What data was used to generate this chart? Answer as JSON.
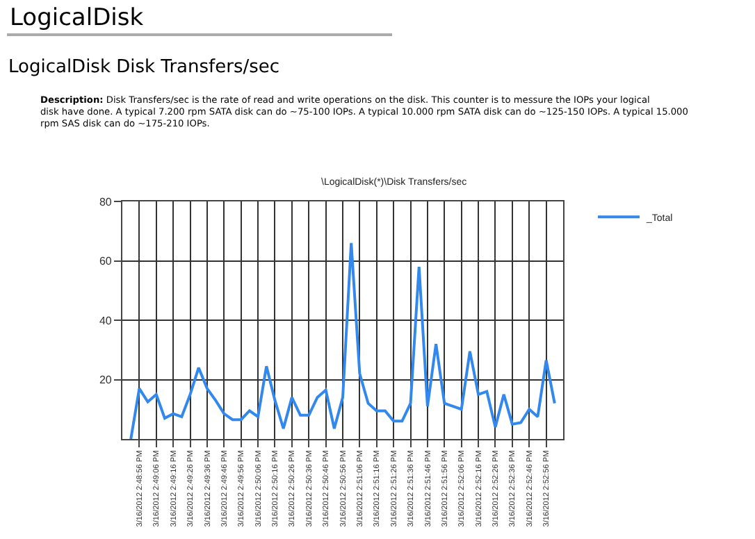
{
  "chart_data": {
    "type": "line",
    "title": "LogicalDisk",
    "subtitle": "LogicalDisk Disk Transfers/sec",
    "annotations": [
      "Description: Disk Transfers/sec is the rate of read and write operations on the disk. This counter is to messure the IOPs your logical disk have done. A typical 7.200 rpm SATA disk can do ~75-100 IOPs. A typical 10.000 rpm SATA disk can do ~125-150 IOPs. A typical 15.000 rpm SAS disk can do ~175-210 IOPs.",
      "\\LogicalDisk(*)\\Disk Transfers/sec"
    ],
    "x": [
      "2012-03-16T14:48:51",
      "2012-03-16T14:48:56",
      "2012-03-16T14:49:01",
      "2012-03-16T14:49:06",
      "2012-03-16T14:49:11",
      "2012-03-16T14:49:16",
      "2012-03-16T14:49:21",
      "2012-03-16T14:49:26",
      "2012-03-16T14:49:31",
      "2012-03-16T14:49:36",
      "2012-03-16T14:49:41",
      "2012-03-16T14:49:46",
      "2012-03-16T14:49:51",
      "2012-03-16T14:49:56",
      "2012-03-16T14:50:01",
      "2012-03-16T14:50:06",
      "2012-03-16T14:50:11",
      "2012-03-16T14:50:16",
      "2012-03-16T14:50:21",
      "2012-03-16T14:50:26",
      "2012-03-16T14:50:31",
      "2012-03-16T14:50:36",
      "2012-03-16T14:50:41",
      "2012-03-16T14:50:46",
      "2012-03-16T14:50:51",
      "2012-03-16T14:50:56",
      "2012-03-16T14:51:01",
      "2012-03-16T14:51:06",
      "2012-03-16T14:51:11",
      "2012-03-16T14:51:16",
      "2012-03-16T14:51:21",
      "2012-03-16T14:51:26",
      "2012-03-16T14:51:31",
      "2012-03-16T14:51:36",
      "2012-03-16T14:51:41",
      "2012-03-16T14:51:46",
      "2012-03-16T14:51:51",
      "2012-03-16T14:51:56",
      "2012-03-16T14:52:01",
      "2012-03-16T14:52:06",
      "2012-03-16T14:52:11",
      "2012-03-16T14:52:16",
      "2012-03-16T14:52:21",
      "2012-03-16T14:52:26",
      "2012-03-16T14:52:31",
      "2012-03-16T14:52:36",
      "2012-03-16T14:52:41",
      "2012-03-16T14:52:46",
      "2012-03-16T14:52:51",
      "2012-03-16T14:52:56",
      "2012-03-16T14:53:01"
    ],
    "series": [
      {
        "name": "_Total",
        "color": "#3388ee",
        "values": [
          0,
          17,
          12.5,
          15,
          7,
          8.5,
          7.5,
          15,
          24,
          17,
          13,
          8.5,
          6.5,
          6.5,
          9.5,
          7.5,
          24.5,
          13,
          3.5,
          14,
          8,
          8,
          14,
          16.5,
          3.5,
          14,
          66,
          22,
          12,
          9.5,
          9.5,
          6,
          6,
          12,
          58,
          11,
          32,
          12,
          11,
          10,
          29.5,
          15,
          16,
          4,
          15,
          5,
          5.5,
          10,
          7.5,
          26.5,
          12
        ]
      }
    ],
    "xlim": [
      "2012-03-16T14:48:46",
      "2012-03-16T14:53:06"
    ],
    "xticks": [
      {
        "value": "2012-03-16T14:48:56",
        "label": "3/16/2012 2:48:56 PM"
      },
      {
        "value": "2012-03-16T14:49:06",
        "label": "3/16/2012 2:49:06 PM"
      },
      {
        "value": "2012-03-16T14:49:16",
        "label": "3/16/2012 2:49:16 PM"
      },
      {
        "value": "2012-03-16T14:49:26",
        "label": "3/16/2012 2:49:26 PM"
      },
      {
        "value": "2012-03-16T14:49:36",
        "label": "3/16/2012 2:49:36 PM"
      },
      {
        "value": "2012-03-16T14:49:46",
        "label": "3/16/2012 2:49:46 PM"
      },
      {
        "value": "2012-03-16T14:49:56",
        "label": "3/16/2012 2:49:56 PM"
      },
      {
        "value": "2012-03-16T14:50:06",
        "label": "3/16/2012 2:50:06 PM"
      },
      {
        "value": "2012-03-16T14:50:16",
        "label": "3/16/2012 2:50:16 PM"
      },
      {
        "value": "2012-03-16T14:50:26",
        "label": "3/16/2012 2:50:26 PM"
      },
      {
        "value": "2012-03-16T14:50:36",
        "label": "3/16/2012 2:50:36 PM"
      },
      {
        "value": "2012-03-16T14:50:46",
        "label": "3/16/2012 2:50:46 PM"
      },
      {
        "value": "2012-03-16T14:50:56",
        "label": "3/16/2012 2:50:56 PM"
      },
      {
        "value": "2012-03-16T14:51:06",
        "label": "3/16/2012 2:51:06 PM"
      },
      {
        "value": "2012-03-16T14:51:16",
        "label": "3/16/2012 2:51:16 PM"
      },
      {
        "value": "2012-03-16T14:51:26",
        "label": "3/16/2012 2:51:26 PM"
      },
      {
        "value": "2012-03-16T14:51:36",
        "label": "3/16/2012 2:51:36 PM"
      },
      {
        "value": "2012-03-16T14:51:46",
        "label": "3/16/2012 2:51:46 PM"
      },
      {
        "value": "2012-03-16T14:51:56",
        "label": "3/16/2012 2:51:56 PM"
      },
      {
        "value": "2012-03-16T14:52:06",
        "label": "3/16/2012 2:52:06 PM"
      },
      {
        "value": "2012-03-16T14:52:16",
        "label": "3/16/2012 2:52:16 PM"
      },
      {
        "value": "2012-03-16T14:52:26",
        "label": "3/16/2012 2:52:26 PM"
      },
      {
        "value": "2012-03-16T14:52:36",
        "label": "3/16/2012 2:52:36 PM"
      },
      {
        "value": "2012-03-16T14:52:46",
        "label": "3/16/2012 2:52:46 PM"
      },
      {
        "value": "2012-03-16T14:52:56",
        "label": "3/16/2012 2:52:56 PM"
      }
    ],
    "ylim": [
      0,
      80
    ],
    "yticks": [
      20,
      40,
      60,
      80
    ],
    "grid": true,
    "legend": "top right",
    "marker": "none",
    "line_style": "solid"
  }
}
